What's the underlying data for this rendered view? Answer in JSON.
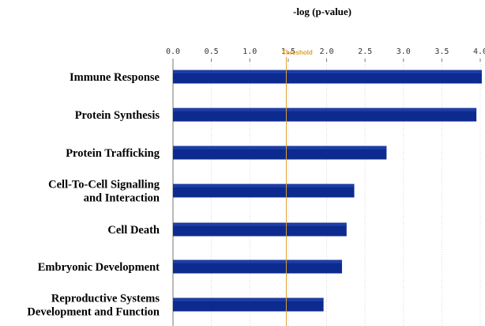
{
  "chart_data": {
    "type": "bar",
    "orientation": "horizontal",
    "title": "-log (p-value)",
    "categories": [
      "Immune Response",
      "Protein Synthesis",
      "Protein Trafficking",
      "Cell-To-Cell Signalling\nand Interaction",
      "Cell Death",
      "Embryonic Development",
      "Reproductive Systems\nDevelopment and Function"
    ],
    "values": [
      4.02,
      3.95,
      2.78,
      2.36,
      2.26,
      2.2,
      1.96
    ],
    "xlim": [
      0,
      4.0
    ],
    "xticks": [
      "0.0",
      "0.5",
      "1.0",
      "1.5",
      "2.0",
      "2.5",
      "3.0",
      "3.5",
      "4.0"
    ],
    "axis_position": "top",
    "grid": true,
    "threshold": {
      "label": "Threshold",
      "value": 1.3
    },
    "colors": {
      "bar": "#0d2b8f",
      "threshold": "#e0a030",
      "grid": "#d8d8d8"
    }
  }
}
